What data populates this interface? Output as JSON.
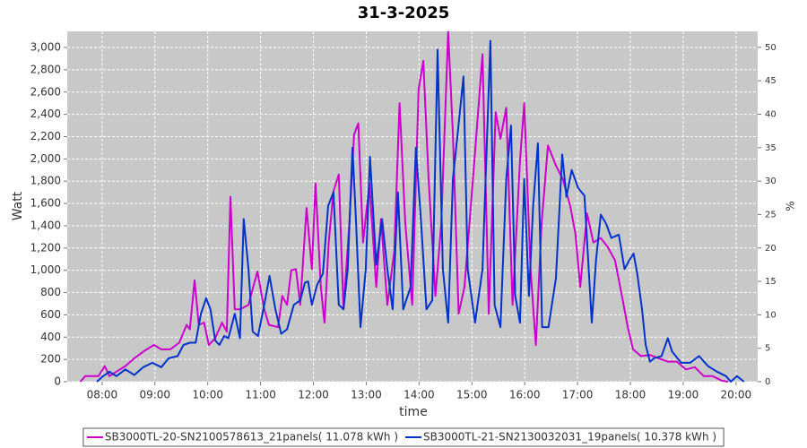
{
  "chart_data": {
    "type": "line",
    "title": "31-3-2025",
    "xlabel": "time",
    "ylabel": "Watt",
    "y2label": "%",
    "xlim": [
      7.34,
      20.41
    ],
    "xticks": [
      {
        "value": 8,
        "label": "08:00"
      },
      {
        "value": 9,
        "label": "09:00"
      },
      {
        "value": 10,
        "label": "10:00"
      },
      {
        "value": 11,
        "label": "11:00"
      },
      {
        "value": 12,
        "label": "12:00"
      },
      {
        "value": 13,
        "label": "13:00"
      },
      {
        "value": 14,
        "label": "14:00"
      },
      {
        "value": 15,
        "label": "15:00"
      },
      {
        "value": 16,
        "label": "16:00"
      },
      {
        "value": 17,
        "label": "17:00"
      },
      {
        "value": 18,
        "label": "18:00"
      },
      {
        "value": 19,
        "label": "19:00"
      },
      {
        "value": 20,
        "label": "20:00"
      }
    ],
    "ylim": [
      0,
      3145
    ],
    "yticks": [
      0,
      200,
      400,
      600,
      800,
      {
        "value": 1000,
        "label": "1,000"
      },
      {
        "value": 1200,
        "label": "1,200"
      },
      {
        "value": 1400,
        "label": "1,400"
      },
      {
        "value": 1600,
        "label": "1,600"
      },
      {
        "value": 1800,
        "label": "1,800"
      },
      {
        "value": 2000,
        "label": "2,000"
      },
      {
        "value": 2200,
        "label": "2,200"
      },
      {
        "value": 2400,
        "label": "2,400"
      },
      {
        "value": 2600,
        "label": "2,600"
      },
      {
        "value": 2800,
        "label": "2,800"
      },
      {
        "value": 3000,
        "label": "3,000"
      }
    ],
    "y2lim": [
      0,
      52.4
    ],
    "y2ticks": [
      0,
      5,
      10,
      15,
      20,
      25,
      30,
      35,
      40,
      45,
      50
    ],
    "grid": true,
    "legend": "bottom",
    "series": [
      {
        "name": "SB3000TL-20-SN2100578613_21panels( 11.078 kWh )",
        "color": "#cc00cc",
        "x": [
          7.59,
          7.68,
          7.93,
          8.05,
          8.14,
          8.27,
          8.44,
          8.61,
          8.78,
          8.98,
          9.12,
          9.29,
          9.46,
          9.6,
          9.66,
          9.75,
          9.83,
          9.93,
          10.02,
          10.14,
          10.27,
          10.36,
          10.43,
          10.51,
          10.61,
          10.77,
          10.94,
          11.07,
          11.16,
          11.33,
          11.41,
          11.5,
          11.58,
          11.67,
          11.75,
          11.87,
          11.97,
          12.04,
          12.14,
          12.21,
          12.29,
          12.38,
          12.48,
          12.57,
          12.68,
          12.77,
          12.85,
          12.94,
          13.06,
          13.19,
          13.28,
          13.4,
          13.53,
          13.63,
          13.74,
          13.87,
          13.99,
          14.08,
          14.18,
          14.31,
          14.42,
          14.55,
          14.64,
          14.75,
          14.86,
          14.98,
          15.06,
          15.2,
          15.32,
          15.45,
          15.54,
          15.65,
          15.77,
          15.91,
          15.99,
          16.11,
          16.21,
          16.32,
          16.44,
          16.59,
          16.72,
          16.86,
          16.96,
          17.05,
          17.18,
          17.3,
          17.44,
          17.57,
          17.71,
          17.84,
          17.95,
          18.05,
          18.2,
          18.37,
          18.54,
          18.71,
          18.88,
          19.05,
          19.22,
          19.39,
          19.56,
          19.73,
          19.85
        ],
        "values": [
          0,
          50,
          50,
          140,
          50,
          90,
          140,
          210,
          270,
          330,
          290,
          290,
          350,
          510,
          470,
          910,
          510,
          530,
          330,
          390,
          530,
          450,
          1660,
          650,
          650,
          690,
          990,
          650,
          510,
          490,
          770,
          690,
          1000,
          1010,
          690,
          1560,
          1010,
          1780,
          850,
          530,
          1250,
          1710,
          1860,
          650,
          1420,
          2220,
          2320,
          1250,
          1780,
          850,
          1460,
          690,
          1170,
          2500,
          1420,
          690,
          2620,
          2880,
          1820,
          770,
          1420,
          3140,
          2220,
          610,
          850,
          1580,
          2060,
          2940,
          610,
          2420,
          2180,
          2460,
          690,
          1980,
          2500,
          1010,
          330,
          1420,
          2120,
          1940,
          1820,
          1580,
          1330,
          850,
          1510,
          1250,
          1290,
          1210,
          1090,
          770,
          490,
          290,
          230,
          240,
          210,
          180,
          180,
          110,
          130,
          50,
          50,
          10,
          0
        ]
      },
      {
        "name": "SB3000TL-21-SN2130032031_19panels( 10.378 kWh )",
        "color": "#0033cc",
        "x": [
          7.9,
          8.02,
          8.14,
          8.27,
          8.44,
          8.61,
          8.78,
          8.95,
          9.12,
          9.26,
          9.43,
          9.54,
          9.66,
          9.77,
          9.87,
          9.97,
          10.05,
          10.14,
          10.22,
          10.31,
          10.39,
          10.51,
          10.61,
          10.68,
          10.77,
          10.85,
          10.95,
          11.07,
          11.17,
          11.28,
          11.39,
          11.5,
          11.63,
          11.75,
          11.84,
          11.9,
          11.97,
          12.07,
          12.18,
          12.28,
          12.38,
          12.48,
          12.57,
          12.65,
          12.74,
          12.8,
          12.89,
          12.99,
          13.07,
          13.19,
          13.3,
          13.4,
          13.5,
          13.6,
          13.7,
          13.84,
          13.94,
          14.04,
          14.14,
          14.25,
          14.35,
          14.45,
          14.55,
          14.64,
          14.72,
          14.84,
          14.92,
          15.06,
          15.2,
          15.35,
          15.43,
          15.54,
          15.65,
          15.74,
          15.82,
          15.91,
          15.99,
          16.08,
          16.16,
          16.25,
          16.33,
          16.45,
          16.59,
          16.71,
          16.79,
          16.89,
          17.01,
          17.13,
          17.27,
          17.35,
          17.44,
          17.54,
          17.64,
          17.78,
          17.89,
          17.98,
          18.06,
          18.13,
          18.22,
          18.29,
          18.37,
          18.45,
          18.59,
          18.71,
          18.79,
          18.96,
          19.13,
          19.3,
          19.47,
          19.64,
          19.81,
          19.9,
          20.02,
          20.15
        ],
        "values": [
          0,
          50,
          90,
          50,
          110,
          60,
          130,
          170,
          130,
          210,
          230,
          330,
          350,
          350,
          610,
          750,
          650,
          370,
          330,
          410,
          390,
          610,
          390,
          1460,
          1010,
          450,
          410,
          690,
          950,
          650,
          430,
          470,
          690,
          730,
          890,
          900,
          690,
          870,
          970,
          1580,
          1700,
          690,
          650,
          1010,
          2100,
          1500,
          490,
          1010,
          2020,
          1050,
          1460,
          1010,
          650,
          1700,
          650,
          850,
          2100,
          1420,
          650,
          730,
          2980,
          1010,
          530,
          1820,
          2180,
          2740,
          1010,
          530,
          1010,
          3060,
          690,
          490,
          1820,
          2300,
          770,
          530,
          1820,
          770,
          1580,
          2140,
          490,
          490,
          930,
          2040,
          1660,
          1900,
          1740,
          1670,
          530,
          1090,
          1500,
          1420,
          1290,
          1320,
          1010,
          1090,
          1150,
          970,
          650,
          330,
          180,
          210,
          230,
          390,
          270,
          170,
          170,
          230,
          140,
          90,
          50,
          0,
          50,
          0
        ]
      }
    ]
  }
}
